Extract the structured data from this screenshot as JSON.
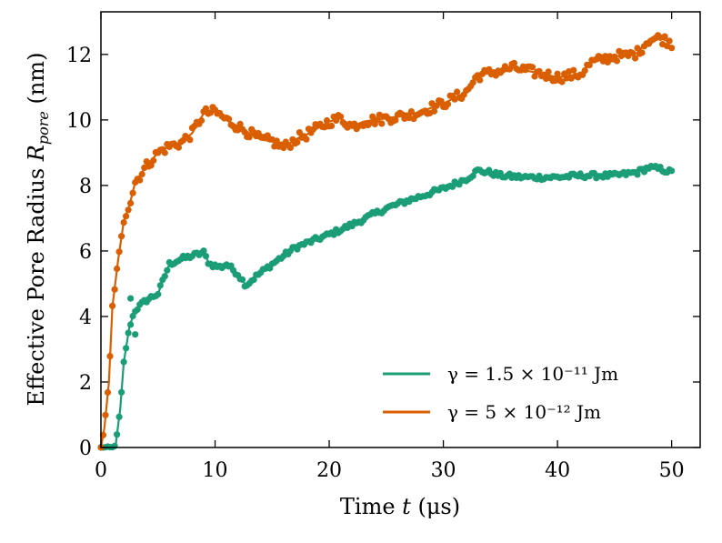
{
  "chart_data": {
    "type": "scatter",
    "xlabel": "Time t (μs)",
    "ylabel": "Effective Pore Radius R_pore (nm)",
    "xlim": [
      0,
      52.5
    ],
    "ylim": [
      0,
      13.3
    ],
    "xticks": [
      0,
      10,
      20,
      30,
      40,
      50
    ],
    "yticks": [
      0,
      2,
      4,
      6,
      8,
      10,
      12
    ],
    "legend_position": "lower-right",
    "series": [
      {
        "name": "γ = 1.5 × 10⁻¹¹ Jm",
        "color": "#1b9e77",
        "x": [
          0.0,
          1.0,
          1.3,
          1.7,
          2.0,
          2.5,
          3.0,
          4.0,
          5.0,
          6.0,
          7.0,
          8.0,
          9.0,
          9.5,
          10.5,
          11.0,
          12.0,
          12.7,
          13.5,
          15.0,
          17.0,
          20.0,
          22.0,
          25.0,
          27.0,
          30.0,
          32.0,
          33.0,
          34.0,
          35.0,
          37.0,
          40.0,
          42.0,
          45.0,
          47.0,
          48.0,
          49.0,
          50.0
        ],
        "y": [
          0.0,
          0.0,
          0.1,
          1.2,
          2.6,
          3.7,
          4.2,
          4.5,
          4.7,
          5.6,
          5.75,
          5.85,
          5.95,
          5.6,
          5.5,
          5.6,
          5.3,
          4.95,
          5.2,
          5.6,
          6.1,
          6.5,
          6.8,
          7.3,
          7.55,
          7.9,
          8.2,
          8.45,
          8.4,
          8.3,
          8.25,
          8.25,
          8.3,
          8.3,
          8.4,
          8.55,
          8.5,
          8.4
        ],
        "extra_points": [
          {
            "x": 2.6,
            "y": 4.55
          },
          {
            "x": 3.0,
            "y": 3.45
          }
        ]
      },
      {
        "name": "γ = 5 × 10⁻¹² Jm",
        "color": "#d95f02",
        "x": [
          0.0,
          0.3,
          0.7,
          1.0,
          1.5,
          2.0,
          2.5,
          3.0,
          4.0,
          5.0,
          6.0,
          7.0,
          8.0,
          9.0,
          10.0,
          11.0,
          12.0,
          13.0,
          14.0,
          15.0,
          16.0,
          17.0,
          18.0,
          20.0,
          21.0,
          22.0,
          23.0,
          25.0,
          27.0,
          28.0,
          30.0,
          32.0,
          33.0,
          35.0,
          36.0,
          38.0,
          40.0,
          42.0,
          43.0,
          45.0,
          46.0,
          47.0,
          48.0,
          49.0,
          50.0
        ],
        "y": [
          0.0,
          0.6,
          2.0,
          4.3,
          5.7,
          6.9,
          7.4,
          8.1,
          8.6,
          9.0,
          9.2,
          9.3,
          9.6,
          10.2,
          10.25,
          10.0,
          9.8,
          9.6,
          9.4,
          9.35,
          9.15,
          9.4,
          9.55,
          9.95,
          10.05,
          9.8,
          9.95,
          10.05,
          10.15,
          10.25,
          10.5,
          10.85,
          11.35,
          11.5,
          11.6,
          11.45,
          11.3,
          11.4,
          11.75,
          11.95,
          11.95,
          12.05,
          12.45,
          12.5,
          12.35
        ]
      }
    ]
  }
}
